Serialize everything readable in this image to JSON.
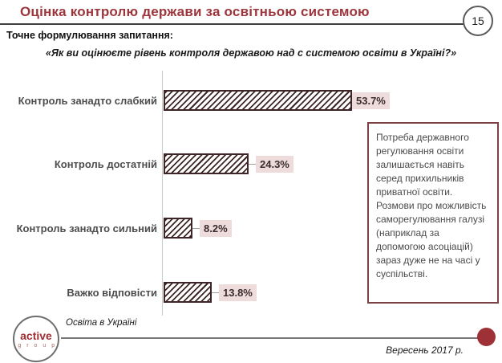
{
  "slide": {
    "title": "Оцінка контролю держави за освітньою системою",
    "page_number": "15",
    "question_label": "Точне формулювання запитання:",
    "question_quote": "«Як ви оцінюєте рівень контроля державою над с системою освіти в Україні?»"
  },
  "chart_data": {
    "type": "bar",
    "orientation": "horizontal",
    "title": "Оцінка контролю держави за освітньою системою",
    "categories": [
      "Контроль занадто слабкий",
      "Контроль достатній",
      "Контроль занадто сильний",
      "Важко відповісти"
    ],
    "values": [
      53.7,
      24.3,
      8.2,
      13.8
    ],
    "value_labels": [
      "53.7%",
      "24.3%",
      "8.2%",
      "13.8%"
    ],
    "xlabel": "",
    "ylabel": "",
    "xlim": [
      0,
      60
    ],
    "grid": false,
    "legend": false,
    "bar_style": "diagonal-hatch"
  },
  "annotation_box": {
    "text": "Потреба державного регулювання освіти залишається навіть серед прихильників приватної освіти. Розмови про можливість саморегулювання галузі (наприклад за допомогою асоціацій) зараз дуже не на часі у суспільстві."
  },
  "footer": {
    "logo_line1": "active",
    "logo_line2": "g r o u p",
    "source_label": "Освіта в Україні",
    "date_label": "Вересень 2017 р."
  },
  "colors": {
    "accent_red": "#9d363c",
    "bar_hatch": "#3e2527",
    "value_label_bg": "#eedcdc",
    "note_border": "#7c4145",
    "footer_dot": "#9d3136"
  }
}
